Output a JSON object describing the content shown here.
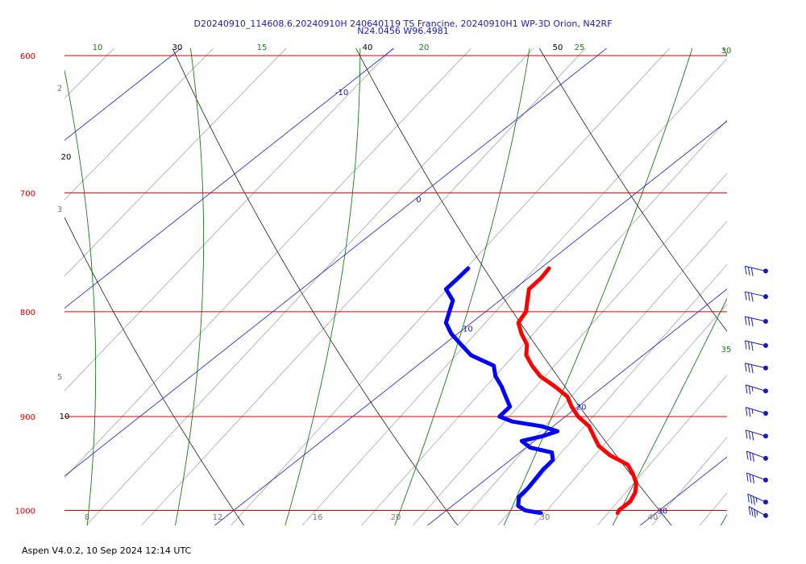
{
  "header": {
    "line1": "D20240910_114608.6.20240910H 240640119 TS Francine, 20240910H1 WP-3D Orion, N42RF",
    "line2": "N24.0456 W96.4981"
  },
  "footer": "Aspen V4.0.2, 10 Sep 2024  12:14 UTC",
  "colors": {
    "isobar": "#d00000",
    "isotherm": "#1a1ab8",
    "dry_adiabat": "#000000",
    "moist_adiabat": "#1a7a1a",
    "mixing_ratio": "#9a9a9a",
    "temperature_trace": "#ff0000",
    "dewpoint_trace": "#0000ff",
    "wind_barb": "#1a1ab8"
  },
  "chart_data": {
    "type": "line",
    "diagram": "skew-T log-P",
    "ylim": [
      1020,
      600
    ],
    "pressure_labels": [
      "600",
      "700",
      "800",
      "900",
      "1000"
    ],
    "isobars": [
      600,
      700,
      800,
      900,
      1000
    ],
    "isotherm_labels": [
      {
        "value": -10,
        "text": "-10"
      },
      {
        "value": 0,
        "text": "0"
      },
      {
        "value": 10,
        "text": "10"
      },
      {
        "value": 20,
        "text": "20"
      },
      {
        "value": 30,
        "text": "30"
      }
    ],
    "dry_adiabat_labels": [
      "10",
      "20",
      "30",
      "40",
      "50"
    ],
    "moist_adiabat_labels": [
      "10",
      "15",
      "20",
      "25",
      "30",
      "35"
    ],
    "mixing_ratio_labels_left": [
      "2",
      "3",
      "5"
    ],
    "bottom_axis_labels": [
      "8",
      "12",
      "16",
      "20",
      "30",
      "40"
    ],
    "series": [
      {
        "variable": "temperature",
        "points": [
          {
            "p": 762,
            "t": 10.4
          },
          {
            "p": 770,
            "t": 10.6
          },
          {
            "p": 780,
            "t": 10.7
          },
          {
            "p": 790,
            "t": 11.3
          },
          {
            "p": 800,
            "t": 11.9
          },
          {
            "p": 810,
            "t": 12.2
          },
          {
            "p": 820,
            "t": 13.0
          },
          {
            "p": 830,
            "t": 13.9
          },
          {
            "p": 840,
            "t": 14.5
          },
          {
            "p": 850,
            "t": 15.4
          },
          {
            "p": 860,
            "t": 16.4
          },
          {
            "p": 870,
            "t": 17.7
          },
          {
            "p": 880,
            "t": 18.9
          },
          {
            "p": 890,
            "t": 19.7
          },
          {
            "p": 900,
            "t": 20.6
          },
          {
            "p": 910,
            "t": 21.7
          },
          {
            "p": 920,
            "t": 22.5
          },
          {
            "p": 930,
            "t": 23.3
          },
          {
            "p": 940,
            "t": 24.4
          },
          {
            "p": 950,
            "t": 25.8
          },
          {
            "p": 960,
            "t": 26.6
          },
          {
            "p": 970,
            "t": 27.3
          },
          {
            "p": 980,
            "t": 27.8
          },
          {
            "p": 990,
            "t": 28.1
          },
          {
            "p": 1000,
            "t": 28.1
          },
          {
            "p": 1003,
            "t": 28.2
          }
        ]
      },
      {
        "variable": "dewpoint",
        "points": [
          {
            "p": 762,
            "t": 6.6
          },
          {
            "p": 770,
            "t": 6.7
          },
          {
            "p": 780,
            "t": 6.8
          },
          {
            "p": 790,
            "t": 7.8
          },
          {
            "p": 800,
            "t": 8.3
          },
          {
            "p": 810,
            "t": 8.8
          },
          {
            "p": 820,
            "t": 9.7
          },
          {
            "p": 830,
            "t": 10.8
          },
          {
            "p": 840,
            "t": 11.9
          },
          {
            "p": 850,
            "t": 13.6
          },
          {
            "p": 860,
            "t": 14.3
          },
          {
            "p": 870,
            "t": 15.2
          },
          {
            "p": 880,
            "t": 16.0
          },
          {
            "p": 890,
            "t": 16.8
          },
          {
            "p": 900,
            "t": 16.9
          },
          {
            "p": 905,
            "t": 17.8
          },
          {
            "p": 910,
            "t": 19.5
          },
          {
            "p": 915,
            "t": 20.5
          },
          {
            "p": 920,
            "t": 20.1
          },
          {
            "p": 925,
            "t": 19.4
          },
          {
            "p": 932,
            "t": 20.2
          },
          {
            "p": 937,
            "t": 21.5
          },
          {
            "p": 945,
            "t": 22.0
          },
          {
            "p": 955,
            "t": 22.1
          },
          {
            "p": 965,
            "t": 22.3
          },
          {
            "p": 975,
            "t": 22.5
          },
          {
            "p": 985,
            "t": 22.6
          },
          {
            "p": 995,
            "t": 23.1
          },
          {
            "p": 1000,
            "t": 23.7
          },
          {
            "p": 1003,
            "t": 24.6
          }
        ]
      }
    ],
    "wind_barbs": [
      {
        "p": 756,
        "dir": 70,
        "speed": 30
      },
      {
        "p": 778,
        "dir": 70,
        "speed": 30
      },
      {
        "p": 800,
        "dir": 70,
        "speed": 30
      },
      {
        "p": 822,
        "dir": 70,
        "speed": 30
      },
      {
        "p": 843,
        "dir": 70,
        "speed": 30
      },
      {
        "p": 865,
        "dir": 65,
        "speed": 25
      },
      {
        "p": 887,
        "dir": 65,
        "speed": 25
      },
      {
        "p": 910,
        "dir": 65,
        "speed": 30
      },
      {
        "p": 933,
        "dir": 60,
        "speed": 30
      },
      {
        "p": 956,
        "dir": 60,
        "speed": 30
      },
      {
        "p": 980,
        "dir": 55,
        "speed": 35
      },
      {
        "p": 995,
        "dir": 50,
        "speed": 35
      }
    ]
  }
}
